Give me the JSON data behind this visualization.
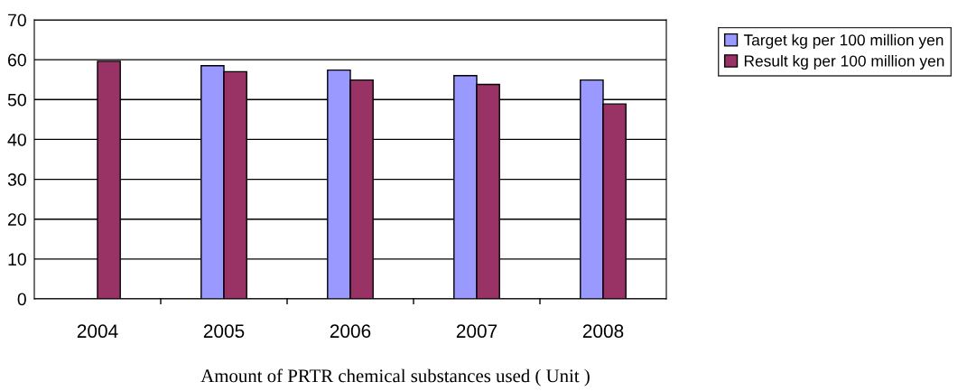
{
  "chart_data": {
    "type": "bar",
    "xlabel": "Amount of PRTR chemical substances used ( Unit )",
    "categories": [
      "2004",
      "2005",
      "2006",
      "2007",
      "2008"
    ],
    "series": [
      {
        "name": "Target kg per 100 million yen",
        "color": "#9999ff",
        "values": [
          null,
          58.5,
          57.4,
          56.0,
          54.9
        ]
      },
      {
        "name": "Result kg per 100 million yen",
        "color": "#993366",
        "values": [
          59.6,
          57.0,
          54.9,
          53.8,
          48.9
        ]
      }
    ],
    "ylim": [
      0,
      70
    ],
    "yticks": [
      0,
      10,
      20,
      30,
      40,
      50,
      60,
      70
    ],
    "grid": "y",
    "legend": "top right"
  }
}
